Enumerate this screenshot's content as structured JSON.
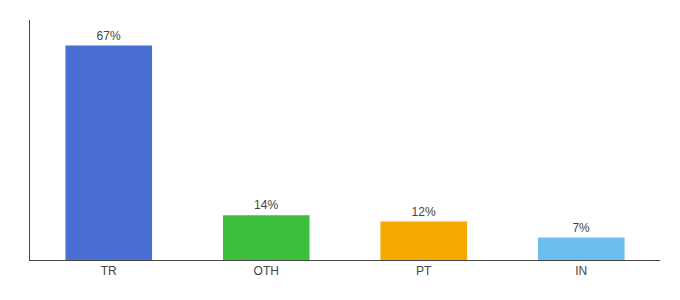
{
  "chart_data": {
    "type": "bar",
    "categories": [
      "TR",
      "OTH",
      "PT",
      "IN"
    ],
    "values": [
      67,
      14,
      12,
      7
    ],
    "value_labels": [
      "67%",
      "14%",
      "12%",
      "7%"
    ],
    "colors": [
      "#4A6FD4",
      "#3DBF3D",
      "#F5A800",
      "#6BBFED"
    ],
    "ylim": [
      0,
      75
    ],
    "grid": false,
    "data_labels": true,
    "tick_labels": "x"
  }
}
